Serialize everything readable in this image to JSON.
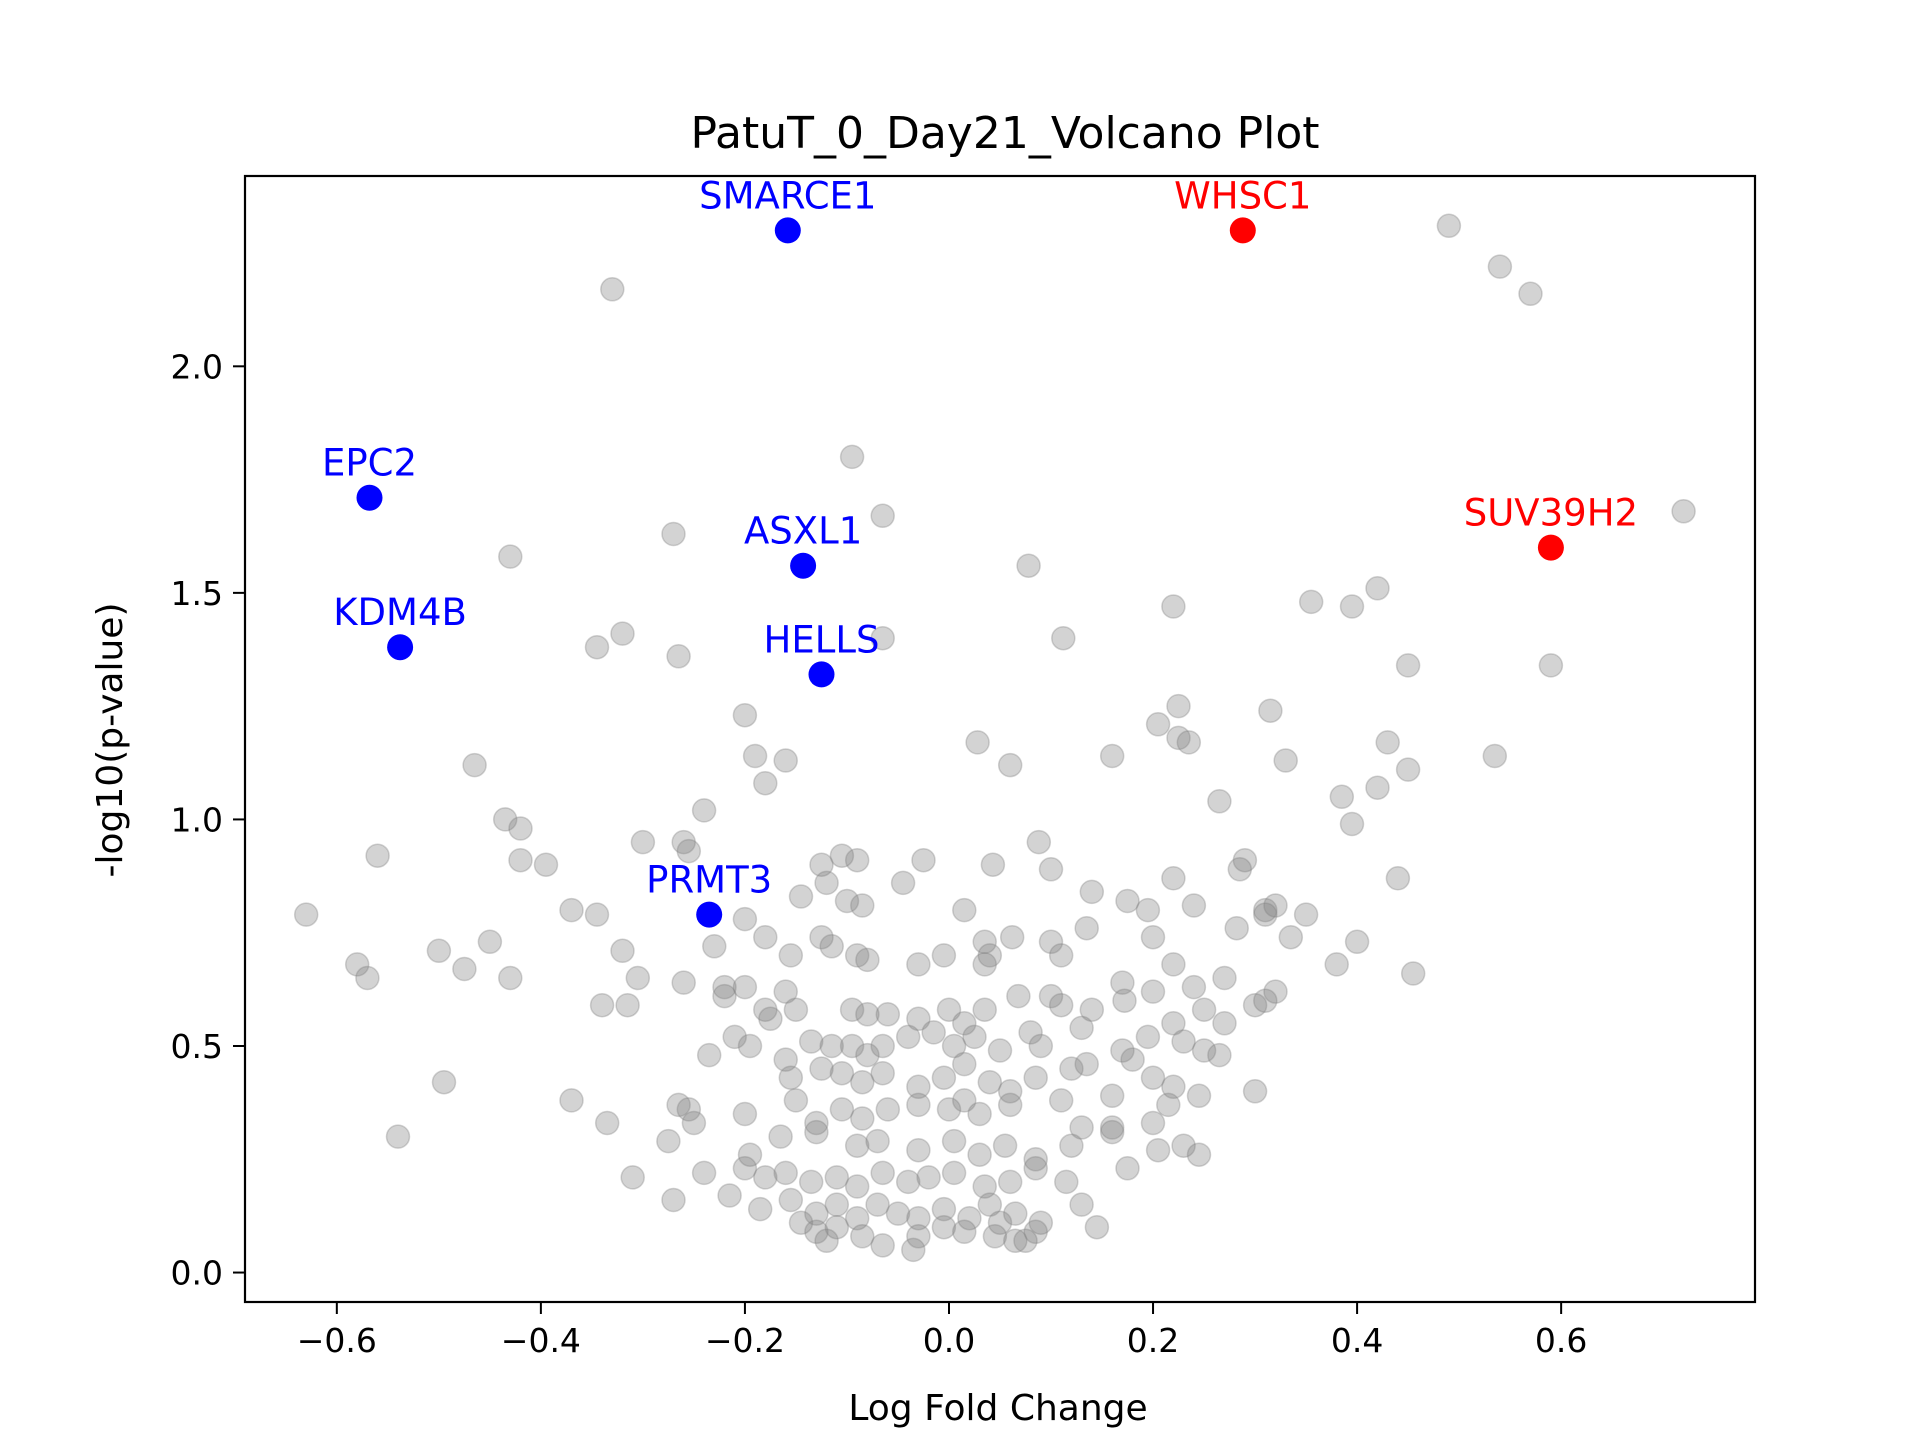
{
  "chart_data": {
    "type": "scatter",
    "title": "PatuT_0_Day21_Volcano Plot",
    "xlabel": "Log Fold Change",
    "ylabel": "-log10(p-value)",
    "xlim": [
      -0.69,
      0.79
    ],
    "ylim": [
      -0.065,
      2.42
    ],
    "xticks": [
      -0.6,
      -0.4,
      -0.2,
      0.0,
      0.2,
      0.4,
      0.6
    ],
    "yticks": [
      0.0,
      0.5,
      1.0,
      1.5,
      2.0
    ],
    "xtick_labels": [
      "−0.6",
      "−0.4",
      "−0.2",
      "0.0",
      "0.2",
      "0.4",
      "0.6"
    ],
    "ytick_labels": [
      "0.0",
      "0.5",
      "1.0",
      "1.5",
      "2.0"
    ],
    "grid": false,
    "colors": {
      "background": "#808080",
      "down": "#0000ff",
      "up": "#ff0000"
    },
    "highlighted": [
      {
        "label": "SMARCE1",
        "x": -0.158,
        "y": 2.3,
        "group": "down"
      },
      {
        "label": "EPC2",
        "x": -0.568,
        "y": 1.71,
        "group": "down"
      },
      {
        "label": "ASXL1",
        "x": -0.143,
        "y": 1.56,
        "group": "down"
      },
      {
        "label": "KDM4B",
        "x": -0.538,
        "y": 1.38,
        "group": "down"
      },
      {
        "label": "HELLS",
        "x": -0.125,
        "y": 1.32,
        "group": "down"
      },
      {
        "label": "PRMT3",
        "x": -0.235,
        "y": 0.79,
        "group": "down"
      },
      {
        "label": "WHSC1",
        "x": 0.288,
        "y": 2.3,
        "group": "up"
      },
      {
        "label": "SUV39H2",
        "x": 0.59,
        "y": 1.6,
        "group": "up"
      }
    ],
    "background_points": [
      [
        -0.33,
        2.17
      ],
      [
        0.49,
        2.31
      ],
      [
        0.54,
        2.22
      ],
      [
        0.57,
        2.16
      ],
      [
        0.72,
        1.68
      ],
      [
        -0.095,
        1.8
      ],
      [
        -0.065,
        1.67
      ],
      [
        -0.27,
        1.63
      ],
      [
        -0.43,
        1.58
      ],
      [
        0.078,
        1.56
      ],
      [
        0.42,
        1.51
      ],
      [
        0.355,
        1.48
      ],
      [
        0.395,
        1.47
      ],
      [
        0.22,
        1.47
      ],
      [
        -0.32,
        1.41
      ],
      [
        -0.345,
        1.38
      ],
      [
        -0.265,
        1.36
      ],
      [
        0.112,
        1.4
      ],
      [
        -0.065,
        1.4
      ],
      [
        0.45,
        1.34
      ],
      [
        0.59,
        1.34
      ],
      [
        -0.2,
        1.23
      ],
      [
        0.225,
        1.25
      ],
      [
        0.205,
        1.21
      ],
      [
        0.225,
        1.18
      ],
      [
        0.235,
        1.17
      ],
      [
        0.315,
        1.24
      ],
      [
        0.43,
        1.17
      ],
      [
        0.028,
        1.17
      ],
      [
        -0.19,
        1.14
      ],
      [
        -0.16,
        1.13
      ],
      [
        0.16,
        1.14
      ],
      [
        0.33,
        1.13
      ],
      [
        0.535,
        1.14
      ],
      [
        -0.465,
        1.12
      ],
      [
        -0.18,
        1.08
      ],
      [
        0.06,
        1.12
      ],
      [
        0.45,
        1.11
      ],
      [
        0.385,
        1.05
      ],
      [
        0.42,
        1.07
      ],
      [
        0.265,
        1.04
      ],
      [
        -0.435,
        1.0
      ],
      [
        -0.42,
        0.98
      ],
      [
        -0.24,
        1.02
      ],
      [
        0.395,
        0.99
      ],
      [
        -0.56,
        0.92
      ],
      [
        -0.42,
        0.91
      ],
      [
        -0.395,
        0.9
      ],
      [
        -0.3,
        0.95
      ],
      [
        -0.26,
        0.95
      ],
      [
        -0.255,
        0.93
      ],
      [
        -0.09,
        0.91
      ],
      [
        -0.105,
        0.92
      ],
      [
        -0.125,
        0.9
      ],
      [
        0.088,
        0.95
      ],
      [
        0.043,
        0.9
      ],
      [
        0.1,
        0.89
      ],
      [
        -0.025,
        0.91
      ],
      [
        0.29,
        0.91
      ],
      [
        0.285,
        0.89
      ],
      [
        0.44,
        0.87
      ],
      [
        -0.145,
        0.83
      ],
      [
        -0.12,
        0.86
      ],
      [
        -0.045,
        0.86
      ],
      [
        0.22,
        0.87
      ],
      [
        -0.1,
        0.82
      ],
      [
        -0.085,
        0.81
      ],
      [
        0.015,
        0.8
      ],
      [
        0.14,
        0.84
      ],
      [
        0.175,
        0.82
      ],
      [
        0.195,
        0.8
      ],
      [
        0.24,
        0.81
      ],
      [
        0.31,
        0.8
      ],
      [
        0.32,
        0.81
      ],
      [
        -0.63,
        0.79
      ],
      [
        -0.37,
        0.8
      ],
      [
        -0.345,
        0.79
      ],
      [
        -0.2,
        0.78
      ],
      [
        -0.18,
        0.74
      ],
      [
        -0.125,
        0.74
      ],
      [
        -0.115,
        0.72
      ],
      [
        -0.09,
        0.7
      ],
      [
        -0.08,
        0.69
      ],
      [
        0.035,
        0.73
      ],
      [
        0.04,
        0.7
      ],
      [
        0.062,
        0.74
      ],
      [
        0.1,
        0.73
      ],
      [
        0.11,
        0.7
      ],
      [
        0.135,
        0.76
      ],
      [
        0.2,
        0.74
      ],
      [
        0.282,
        0.76
      ],
      [
        0.31,
        0.79
      ],
      [
        0.335,
        0.74
      ],
      [
        0.35,
        0.79
      ],
      [
        0.4,
        0.73
      ],
      [
        0.38,
        0.68
      ],
      [
        -0.58,
        0.68
      ],
      [
        -0.57,
        0.65
      ],
      [
        -0.5,
        0.71
      ],
      [
        -0.45,
        0.73
      ],
      [
        -0.475,
        0.67
      ],
      [
        -0.43,
        0.65
      ],
      [
        -0.32,
        0.71
      ],
      [
        -0.305,
        0.65
      ],
      [
        -0.23,
        0.72
      ],
      [
        -0.155,
        0.7
      ],
      [
        -0.005,
        0.7
      ],
      [
        -0.03,
        0.68
      ],
      [
        0.035,
        0.68
      ],
      [
        0.17,
        0.64
      ],
      [
        0.22,
        0.68
      ],
      [
        0.24,
        0.63
      ],
      [
        0.27,
        0.65
      ],
      [
        0.32,
        0.62
      ],
      [
        0.455,
        0.66
      ],
      [
        -0.34,
        0.59
      ],
      [
        -0.315,
        0.59
      ],
      [
        -0.26,
        0.64
      ],
      [
        -0.22,
        0.63
      ],
      [
        -0.2,
        0.63
      ],
      [
        -0.16,
        0.62
      ],
      [
        -0.22,
        0.61
      ],
      [
        -0.18,
        0.58
      ],
      [
        -0.175,
        0.56
      ],
      [
        -0.15,
        0.58
      ],
      [
        -0.095,
        0.58
      ],
      [
        -0.08,
        0.57
      ],
      [
        -0.06,
        0.57
      ],
      [
        -0.03,
        0.56
      ],
      [
        0.0,
        0.58
      ],
      [
        0.015,
        0.55
      ],
      [
        0.035,
        0.58
      ],
      [
        0.068,
        0.61
      ],
      [
        0.1,
        0.61
      ],
      [
        0.11,
        0.59
      ],
      [
        0.14,
        0.58
      ],
      [
        0.172,
        0.6
      ],
      [
        0.2,
        0.62
      ],
      [
        0.22,
        0.55
      ],
      [
        0.25,
        0.58
      ],
      [
        0.27,
        0.55
      ],
      [
        0.3,
        0.59
      ],
      [
        0.31,
        0.6
      ],
      [
        -0.235,
        0.48
      ],
      [
        -0.21,
        0.52
      ],
      [
        -0.195,
        0.5
      ],
      [
        -0.16,
        0.47
      ],
      [
        -0.135,
        0.51
      ],
      [
        -0.115,
        0.5
      ],
      [
        -0.095,
        0.5
      ],
      [
        -0.08,
        0.48
      ],
      [
        -0.065,
        0.5
      ],
      [
        -0.04,
        0.52
      ],
      [
        -0.015,
        0.53
      ],
      [
        0.005,
        0.5
      ],
      [
        0.025,
        0.52
      ],
      [
        0.05,
        0.49
      ],
      [
        0.08,
        0.53
      ],
      [
        0.09,
        0.5
      ],
      [
        0.13,
        0.54
      ],
      [
        0.17,
        0.49
      ],
      [
        0.18,
        0.47
      ],
      [
        0.195,
        0.52
      ],
      [
        0.23,
        0.51
      ],
      [
        0.25,
        0.49
      ],
      [
        0.265,
        0.48
      ],
      [
        -0.155,
        0.43
      ],
      [
        -0.125,
        0.45
      ],
      [
        -0.105,
        0.44
      ],
      [
        -0.085,
        0.42
      ],
      [
        -0.065,
        0.44
      ],
      [
        -0.03,
        0.41
      ],
      [
        -0.005,
        0.43
      ],
      [
        0.015,
        0.46
      ],
      [
        0.04,
        0.42
      ],
      [
        0.06,
        0.4
      ],
      [
        0.085,
        0.43
      ],
      [
        0.12,
        0.45
      ],
      [
        0.135,
        0.46
      ],
      [
        0.16,
        0.39
      ],
      [
        0.2,
        0.43
      ],
      [
        0.22,
        0.41
      ],
      [
        0.245,
        0.39
      ],
      [
        0.3,
        0.4
      ],
      [
        -0.495,
        0.42
      ],
      [
        -0.37,
        0.38
      ],
      [
        -0.265,
        0.37
      ],
      [
        -0.255,
        0.36
      ],
      [
        -0.25,
        0.33
      ],
      [
        -0.2,
        0.35
      ],
      [
        -0.15,
        0.38
      ],
      [
        -0.13,
        0.33
      ],
      [
        -0.105,
        0.36
      ],
      [
        -0.085,
        0.34
      ],
      [
        -0.06,
        0.36
      ],
      [
        -0.03,
        0.37
      ],
      [
        0.0,
        0.36
      ],
      [
        0.015,
        0.38
      ],
      [
        0.03,
        0.35
      ],
      [
        0.06,
        0.37
      ],
      [
        0.11,
        0.38
      ],
      [
        0.13,
        0.32
      ],
      [
        0.16,
        0.32
      ],
      [
        0.2,
        0.33
      ],
      [
        0.215,
        0.37
      ],
      [
        -0.54,
        0.3
      ],
      [
        -0.335,
        0.33
      ],
      [
        -0.275,
        0.29
      ],
      [
        -0.195,
        0.26
      ],
      [
        -0.165,
        0.3
      ],
      [
        -0.13,
        0.31
      ],
      [
        -0.09,
        0.28
      ],
      [
        -0.07,
        0.29
      ],
      [
        -0.03,
        0.27
      ],
      [
        0.005,
        0.29
      ],
      [
        0.03,
        0.26
      ],
      [
        0.055,
        0.28
      ],
      [
        0.085,
        0.25
      ],
      [
        0.12,
        0.28
      ],
      [
        0.16,
        0.31
      ],
      [
        0.205,
        0.27
      ],
      [
        0.23,
        0.28
      ],
      [
        0.245,
        0.26
      ],
      [
        -0.31,
        0.21
      ],
      [
        -0.24,
        0.22
      ],
      [
        -0.2,
        0.23
      ],
      [
        -0.18,
        0.21
      ],
      [
        -0.16,
        0.22
      ],
      [
        -0.135,
        0.2
      ],
      [
        -0.11,
        0.21
      ],
      [
        -0.09,
        0.19
      ],
      [
        -0.065,
        0.22
      ],
      [
        -0.04,
        0.2
      ],
      [
        -0.02,
        0.21
      ],
      [
        0.005,
        0.22
      ],
      [
        0.035,
        0.19
      ],
      [
        0.06,
        0.2
      ],
      [
        0.085,
        0.23
      ],
      [
        0.115,
        0.2
      ],
      [
        0.175,
        0.23
      ],
      [
        -0.27,
        0.16
      ],
      [
        -0.215,
        0.17
      ],
      [
        -0.185,
        0.14
      ],
      [
        -0.155,
        0.16
      ],
      [
        -0.13,
        0.13
      ],
      [
        -0.11,
        0.15
      ],
      [
        -0.09,
        0.12
      ],
      [
        -0.07,
        0.15
      ],
      [
        -0.05,
        0.13
      ],
      [
        -0.03,
        0.12
      ],
      [
        -0.005,
        0.14
      ],
      [
        0.02,
        0.12
      ],
      [
        0.04,
        0.15
      ],
      [
        0.065,
        0.13
      ],
      [
        0.09,
        0.11
      ],
      [
        0.13,
        0.15
      ],
      [
        -0.13,
        0.09
      ],
      [
        -0.11,
        0.1
      ],
      [
        -0.085,
        0.08
      ],
      [
        -0.065,
        0.06
      ],
      [
        -0.035,
        0.05
      ],
      [
        -0.03,
        0.08
      ],
      [
        -0.005,
        0.1
      ],
      [
        0.015,
        0.09
      ],
      [
        0.045,
        0.08
      ],
      [
        0.065,
        0.07
      ],
      [
        0.085,
        0.09
      ],
      [
        0.145,
        0.1
      ],
      [
        -0.145,
        0.11
      ],
      [
        -0.12,
        0.07
      ],
      [
        0.075,
        0.07
      ],
      [
        0.05,
        0.11
      ]
    ]
  }
}
